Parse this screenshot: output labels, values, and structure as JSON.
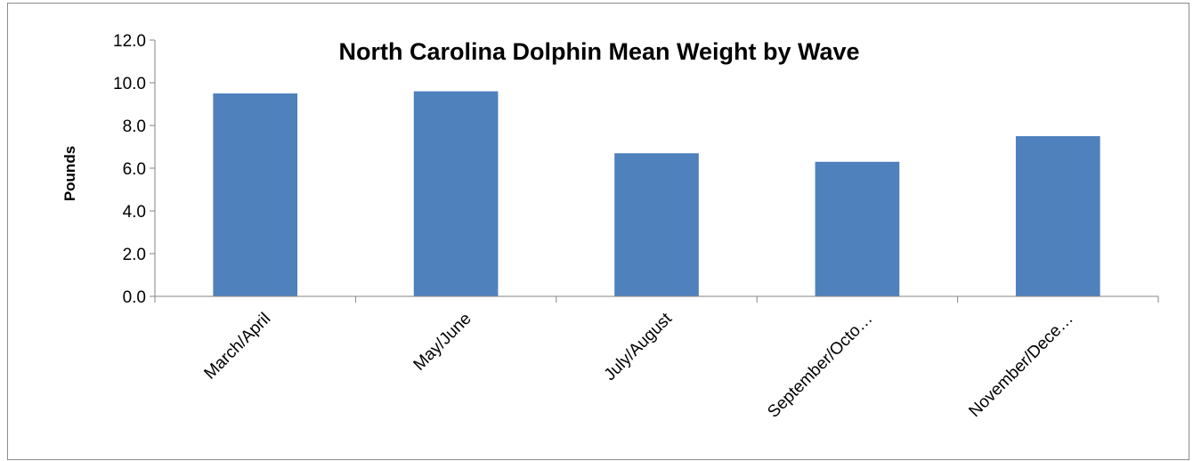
{
  "chart_data": {
    "type": "bar",
    "title": "North Carolina Dolphin Mean Weight by Wave",
    "xlabel": "",
    "ylabel": "Pounds",
    "categories": [
      "March/April",
      "May/June",
      "July/August",
      "September/Octo…",
      "November/Dece…"
    ],
    "series": [
      {
        "values": [
          9.5,
          9.6,
          6.7,
          6.3,
          7.5
        ]
      }
    ],
    "ylim": [
      0,
      12
    ],
    "yticks": [
      "0.0",
      "2.0",
      "4.0",
      "6.0",
      "8.0",
      "10.0",
      "12.0"
    ],
    "grid": false,
    "legend": "none",
    "bar_color": "#4f81bd"
  }
}
